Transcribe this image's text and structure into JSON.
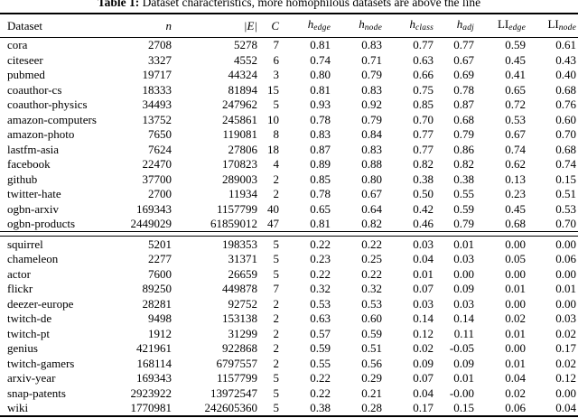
{
  "caption": {
    "label": "Table 1:",
    "text": " Dataset characteristics, more homophilous datasets are above the line"
  },
  "table": {
    "columns": [
      {
        "label": "Dataset",
        "align": "left",
        "italic": false
      },
      {
        "label": "n",
        "italic": true
      },
      {
        "label": "|E|",
        "italic": true
      },
      {
        "label": "C",
        "italic": true
      },
      {
        "label": "h",
        "sub": "edge",
        "italic": true
      },
      {
        "label": "h",
        "sub": "node",
        "italic": true
      },
      {
        "label": "h",
        "sub": "class",
        "italic": true
      },
      {
        "label": "h",
        "sub": "adj",
        "italic": true
      },
      {
        "label": "LI",
        "sub": "edge",
        "italic": false
      },
      {
        "label": "LI",
        "sub": "node",
        "italic": false
      }
    ],
    "sections": [
      {
        "name": "homophilous-datasets",
        "rows": [
          [
            "cora",
            "2708",
            "5278",
            "7",
            "0.81",
            "0.83",
            "0.77",
            "0.77",
            "0.59",
            "0.61"
          ],
          [
            "citeseer",
            "3327",
            "4552",
            "6",
            "0.74",
            "0.71",
            "0.63",
            "0.67",
            "0.45",
            "0.43"
          ],
          [
            "pubmed",
            "19717",
            "44324",
            "3",
            "0.80",
            "0.79",
            "0.66",
            "0.69",
            "0.41",
            "0.40"
          ],
          [
            "coauthor-cs",
            "18333",
            "81894",
            "15",
            "0.81",
            "0.83",
            "0.75",
            "0.78",
            "0.65",
            "0.68"
          ],
          [
            "coauthor-physics",
            "34493",
            "247962",
            "5",
            "0.93",
            "0.92",
            "0.85",
            "0.87",
            "0.72",
            "0.76"
          ],
          [
            "amazon-computers",
            "13752",
            "245861",
            "10",
            "0.78",
            "0.79",
            "0.70",
            "0.68",
            "0.53",
            "0.60"
          ],
          [
            "amazon-photo",
            "7650",
            "119081",
            "8",
            "0.83",
            "0.84",
            "0.77",
            "0.79",
            "0.67",
            "0.70"
          ],
          [
            "lastfm-asia",
            "7624",
            "27806",
            "18",
            "0.87",
            "0.83",
            "0.77",
            "0.86",
            "0.74",
            "0.68"
          ],
          [
            "facebook",
            "22470",
            "170823",
            "4",
            "0.89",
            "0.88",
            "0.82",
            "0.82",
            "0.62",
            "0.74"
          ],
          [
            "github",
            "37700",
            "289003",
            "2",
            "0.85",
            "0.80",
            "0.38",
            "0.38",
            "0.13",
            "0.15"
          ],
          [
            "twitter-hate",
            "2700",
            "11934",
            "2",
            "0.78",
            "0.67",
            "0.50",
            "0.55",
            "0.23",
            "0.51"
          ],
          [
            "ogbn-arxiv",
            "169343",
            "1157799",
            "40",
            "0.65",
            "0.64",
            "0.42",
            "0.59",
            "0.45",
            "0.53"
          ],
          [
            "ogbn-products",
            "2449029",
            "61859012",
            "47",
            "0.81",
            "0.82",
            "0.46",
            "0.79",
            "0.68",
            "0.70"
          ]
        ]
      },
      {
        "name": "heterophilous-datasets",
        "rows": [
          [
            "squirrel",
            "5201",
            "198353",
            "5",
            "0.22",
            "0.22",
            "0.03",
            "0.01",
            "0.00",
            "0.00"
          ],
          [
            "chameleon",
            "2277",
            "31371",
            "5",
            "0.23",
            "0.25",
            "0.04",
            "0.03",
            "0.05",
            "0.06"
          ],
          [
            "actor",
            "7600",
            "26659",
            "5",
            "0.22",
            "0.22",
            "0.01",
            "0.00",
            "0.00",
            "0.00"
          ],
          [
            "flickr",
            "89250",
            "449878",
            "7",
            "0.32",
            "0.32",
            "0.07",
            "0.09",
            "0.01",
            "0.01"
          ],
          [
            "deezer-europe",
            "28281",
            "92752",
            "2",
            "0.53",
            "0.53",
            "0.03",
            "0.03",
            "0.00",
            "0.00"
          ],
          [
            "twitch-de",
            "9498",
            "153138",
            "2",
            "0.63",
            "0.60",
            "0.14",
            "0.14",
            "0.02",
            "0.03"
          ],
          [
            "twitch-pt",
            "1912",
            "31299",
            "2",
            "0.57",
            "0.59",
            "0.12",
            "0.11",
            "0.01",
            "0.02"
          ],
          [
            "genius",
            "421961",
            "922868",
            "2",
            "0.59",
            "0.51",
            "0.02",
            "-0.05",
            "0.00",
            "0.17"
          ],
          [
            "twitch-gamers",
            "168114",
            "6797557",
            "2",
            "0.55",
            "0.56",
            "0.09",
            "0.09",
            "0.01",
            "0.02"
          ],
          [
            "arxiv-year",
            "169343",
            "1157799",
            "5",
            "0.22",
            "0.29",
            "0.07",
            "0.01",
            "0.04",
            "0.12"
          ],
          [
            "snap-patents",
            "2923922",
            "13972547",
            "5",
            "0.22",
            "0.21",
            "0.04",
            "-0.00",
            "0.02",
            "0.00"
          ],
          [
            "wiki",
            "1770981",
            "242605360",
            "5",
            "0.38",
            "0.28",
            "0.17",
            "0.15",
            "0.06",
            "0.04"
          ]
        ]
      }
    ]
  }
}
